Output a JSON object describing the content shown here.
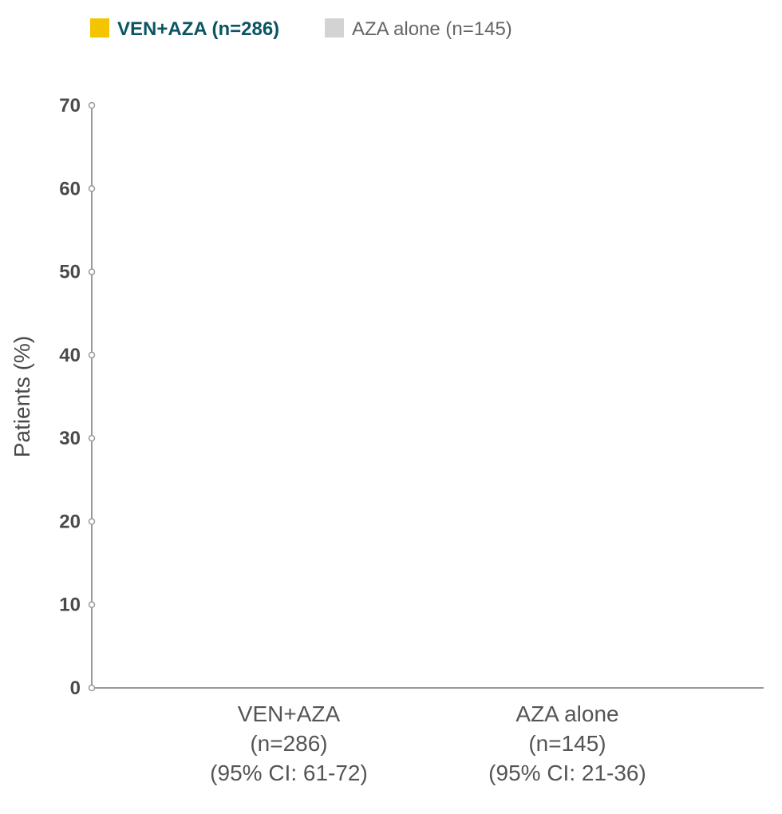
{
  "colors": {
    "ven_aza": "#F5C400",
    "aza_alone": "#D3D3D3",
    "legend_accent_text": "#0B5563",
    "axis": "#9A9A9A",
    "tick_text": "#4A4A4A",
    "category_text": "#555555"
  },
  "chart_data": {
    "type": "bar",
    "title": "",
    "ylabel": "Patients (%)",
    "xlabel": "",
    "ylim": [
      0,
      70
    ],
    "yticks": [
      0,
      10,
      20,
      30,
      40,
      50,
      60,
      70
    ],
    "categories": [
      [
        "VEN+AZA",
        "(n=286)",
        "(95% CI: 61-72)"
      ],
      [
        "AZA alone",
        "(n=145)",
        "(95% CI: 21-36)"
      ]
    ],
    "series": [
      {
        "name": "VEN+AZA (n=286)",
        "color": "#F5C400"
      },
      {
        "name": "AZA alone (n=145)",
        "color": "#D3D3D3"
      }
    ],
    "legend": {
      "placement": "top-left",
      "items": [
        "VEN+AZA (n=286)",
        "AZA alone (n=145)"
      ]
    },
    "grid": false
  }
}
